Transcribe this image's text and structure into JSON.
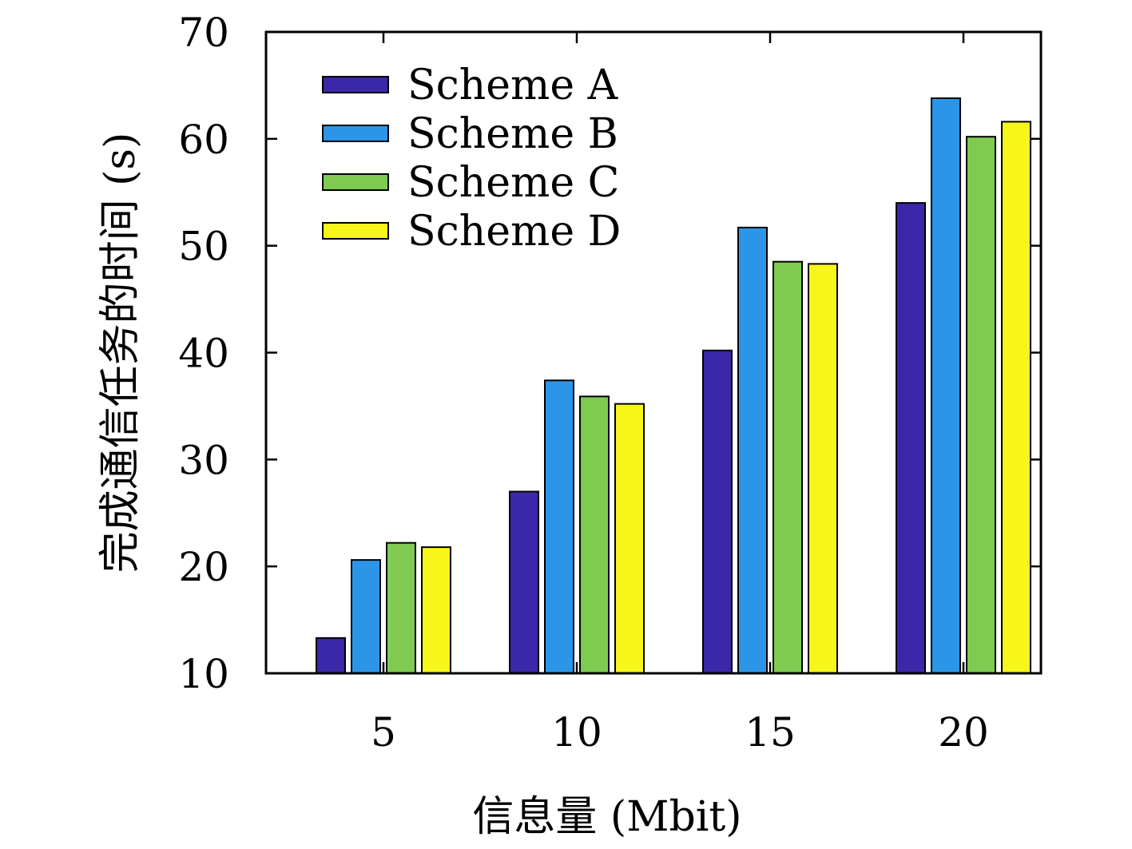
{
  "chart_data": {
    "type": "bar",
    "title": "",
    "xlabel": "信息量 (Mbit)",
    "ylabel": "完成通信任务的时间 (s)",
    "categories": [
      "5",
      "10",
      "15",
      "20"
    ],
    "ylim": [
      10,
      70
    ],
    "yticks": [
      "10",
      "20",
      "30",
      "40",
      "50",
      "60",
      "70"
    ],
    "grid": false,
    "legend_position": "top-left",
    "series": [
      {
        "name": "Scheme A",
        "color": "#3b28a8",
        "values": [
          13.3,
          27.0,
          40.2,
          54.0
        ]
      },
      {
        "name": "Scheme B",
        "color": "#2b96e8",
        "values": [
          20.6,
          37.4,
          51.7,
          63.8
        ]
      },
      {
        "name": "Scheme C",
        "color": "#7fcb52",
        "values": [
          22.2,
          35.9,
          48.5,
          60.2
        ]
      },
      {
        "name": "Scheme D",
        "color": "#f6f61a",
        "values": [
          21.8,
          35.2,
          48.3,
          61.6
        ]
      }
    ]
  }
}
